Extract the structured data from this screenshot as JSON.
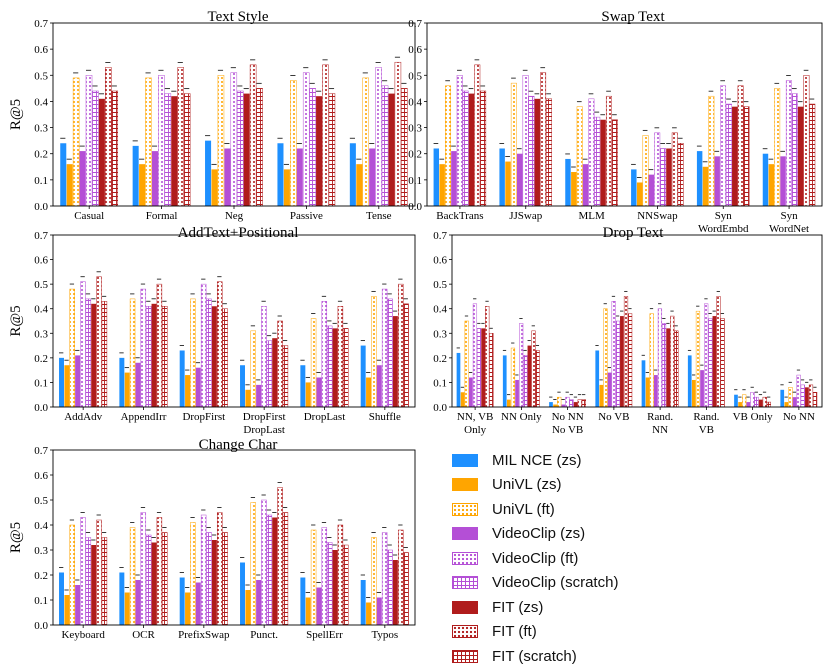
{
  "chart_data": [
    {
      "type": "bar",
      "title": "Text Style",
      "ylabel": "R@5",
      "ylim": [
        0,
        0.7
      ],
      "yticks": [
        "0.0",
        "0.1",
        "0.2",
        "0.3",
        "0.4",
        "0.5",
        "0.6",
        "0.7"
      ],
      "categories": [
        "Casual",
        "Formal",
        "Neg",
        "Passive",
        "Tense"
      ],
      "series": [
        {
          "name": "MIL NCE (zs)",
          "values": [
            0.24,
            0.23,
            0.25,
            0.24,
            0.24
          ]
        },
        {
          "name": "UniVL (zs)",
          "values": [
            0.16,
            0.16,
            0.14,
            0.14,
            0.16
          ]
        },
        {
          "name": "UniVL (ft)",
          "values": [
            0.49,
            0.49,
            0.5,
            0.48,
            0.49
          ]
        },
        {
          "name": "VideoClip (zs)",
          "values": [
            0.21,
            0.21,
            0.22,
            0.22,
            0.22
          ]
        },
        {
          "name": "VideoClip (ft)",
          "values": [
            0.5,
            0.5,
            0.51,
            0.51,
            0.53
          ]
        },
        {
          "name": "VideoClip (scratch)",
          "values": [
            0.44,
            0.43,
            0.44,
            0.45,
            0.46
          ]
        },
        {
          "name": "FIT (zs)",
          "values": [
            0.41,
            0.42,
            0.43,
            0.42,
            0.43
          ]
        },
        {
          "name": "FIT (ft)",
          "values": [
            0.53,
            0.53,
            0.54,
            0.54,
            0.55
          ]
        },
        {
          "name": "FIT (scratch)",
          "values": [
            0.44,
            0.43,
            0.45,
            0.43,
            0.45
          ]
        }
      ]
    },
    {
      "type": "bar",
      "title": "Swap Text",
      "ylabel": "",
      "ylim": [
        0,
        0.7
      ],
      "yticks": [
        "0.0",
        "0.1",
        "0.2",
        "0.3",
        "0.4",
        "0.5",
        "0.6",
        "0.7"
      ],
      "categories": [
        "BackTrans",
        "JJSwap",
        "MLM",
        "NNSwap",
        "Syn\nWordEmbd",
        "Syn\nWordNet"
      ],
      "series": [
        {
          "name": "MIL NCE (zs)",
          "values": [
            0.22,
            0.22,
            0.18,
            0.14,
            0.21,
            0.2
          ]
        },
        {
          "name": "UniVL (zs)",
          "values": [
            0.16,
            0.17,
            0.13,
            0.09,
            0.15,
            0.16
          ]
        },
        {
          "name": "UniVL (ft)",
          "values": [
            0.46,
            0.47,
            0.38,
            0.27,
            0.42,
            0.45
          ]
        },
        {
          "name": "VideoClip (zs)",
          "values": [
            0.21,
            0.2,
            0.16,
            0.12,
            0.19,
            0.19
          ]
        },
        {
          "name": "VideoClip (ft)",
          "values": [
            0.5,
            0.5,
            0.41,
            0.28,
            0.46,
            0.48
          ]
        },
        {
          "name": "VideoClip (scratch)",
          "values": [
            0.44,
            0.42,
            0.34,
            0.22,
            0.39,
            0.43
          ]
        },
        {
          "name": "FIT (zs)",
          "values": [
            0.43,
            0.41,
            0.33,
            0.22,
            0.38,
            0.38
          ]
        },
        {
          "name": "FIT (ft)",
          "values": [
            0.54,
            0.51,
            0.42,
            0.28,
            0.46,
            0.5
          ]
        },
        {
          "name": "FIT (scratch)",
          "values": [
            0.44,
            0.41,
            0.33,
            0.24,
            0.38,
            0.39
          ]
        }
      ]
    },
    {
      "type": "bar",
      "title": "AddText+Positional",
      "ylabel": "R@5",
      "ylim": [
        0,
        0.7
      ],
      "yticks": [
        "0.0",
        "0.1",
        "0.2",
        "0.3",
        "0.4",
        "0.5",
        "0.6",
        "0.7"
      ],
      "categories": [
        "AddAdv",
        "AppendIrr",
        "DropFirst",
        "DropFirst\nDropLast",
        "DropLast",
        "Shuffle"
      ],
      "series": [
        {
          "name": "MIL NCE (zs)",
          "values": [
            0.2,
            0.2,
            0.23,
            0.17,
            0.17,
            0.25
          ]
        },
        {
          "name": "UniVL (zs)",
          "values": [
            0.17,
            0.14,
            0.13,
            0.07,
            0.1,
            0.12
          ]
        },
        {
          "name": "UniVL (ft)",
          "values": [
            0.48,
            0.44,
            0.44,
            0.31,
            0.36,
            0.45
          ]
        },
        {
          "name": "VideoClip (zs)",
          "values": [
            0.21,
            0.18,
            0.16,
            0.09,
            0.12,
            0.17
          ]
        },
        {
          "name": "VideoClip (ft)",
          "values": [
            0.51,
            0.48,
            0.5,
            0.41,
            0.43,
            0.48
          ]
        },
        {
          "name": "VideoClip (scratch)",
          "values": [
            0.44,
            0.41,
            0.44,
            0.27,
            0.33,
            0.44
          ]
        },
        {
          "name": "FIT (zs)",
          "values": [
            0.42,
            0.42,
            0.41,
            0.28,
            0.32,
            0.37
          ]
        },
        {
          "name": "FIT (ft)",
          "values": [
            0.53,
            0.5,
            0.51,
            0.35,
            0.41,
            0.5
          ]
        },
        {
          "name": "FIT (scratch)",
          "values": [
            0.43,
            0.41,
            0.4,
            0.25,
            0.32,
            0.42
          ]
        }
      ]
    },
    {
      "type": "bar",
      "title": "Drop Text",
      "ylabel": "",
      "ylim": [
        0,
        0.7
      ],
      "yticks": [
        "0.0",
        "0.1",
        "0.2",
        "0.3",
        "0.4",
        "0.5",
        "0.6",
        "0.7"
      ],
      "categories": [
        "NN, VB\nOnly",
        "NN Only",
        "No NN\nNo VB",
        "No VB",
        "Rand.\nNN",
        "Rand.\nVB",
        "VB Only",
        "No NN"
      ],
      "series": [
        {
          "name": "MIL NCE (zs)",
          "values": [
            0.22,
            0.21,
            0.02,
            0.23,
            0.19,
            0.21,
            0.05,
            0.07
          ]
        },
        {
          "name": "UniVL (zs)",
          "values": [
            0.06,
            0.03,
            0.01,
            0.09,
            0.12,
            0.11,
            0.02,
            0.02
          ]
        },
        {
          "name": "UniVL (ft)",
          "values": [
            0.35,
            0.24,
            0.04,
            0.4,
            0.38,
            0.39,
            0.05,
            0.08
          ]
        },
        {
          "name": "VideoClip (zs)",
          "values": [
            0.12,
            0.11,
            0.01,
            0.14,
            0.13,
            0.15,
            0.02,
            0.04
          ]
        },
        {
          "name": "VideoClip (ft)",
          "values": [
            0.42,
            0.34,
            0.04,
            0.43,
            0.4,
            0.42,
            0.06,
            0.13
          ]
        },
        {
          "name": "VideoClip (scratch)",
          "values": [
            0.32,
            0.21,
            0.03,
            0.35,
            0.34,
            0.36,
            0.04,
            0.09
          ]
        },
        {
          "name": "FIT (zs)",
          "values": [
            0.32,
            0.25,
            0.02,
            0.37,
            0.32,
            0.37,
            0.03,
            0.08
          ]
        },
        {
          "name": "FIT (ft)",
          "values": [
            0.41,
            0.31,
            0.03,
            0.45,
            0.37,
            0.45,
            0.04,
            0.09
          ]
        },
        {
          "name": "FIT (scratch)",
          "values": [
            0.3,
            0.23,
            0.03,
            0.38,
            0.31,
            0.36,
            0.02,
            0.06
          ]
        }
      ]
    },
    {
      "type": "bar",
      "title": "Change Char",
      "ylabel": "R@5",
      "ylim": [
        0,
        0.7
      ],
      "yticks": [
        "0.0",
        "0.1",
        "0.2",
        "0.3",
        "0.4",
        "0.5",
        "0.6",
        "0.7"
      ],
      "categories": [
        "Keyboard",
        "OCR",
        "PrefixSwap",
        "Punct.",
        "SpellErr",
        "Typos"
      ],
      "series": [
        {
          "name": "MIL NCE (zs)",
          "values": [
            0.21,
            0.21,
            0.19,
            0.25,
            0.19,
            0.18
          ]
        },
        {
          "name": "UniVL (zs)",
          "values": [
            0.12,
            0.13,
            0.13,
            0.14,
            0.11,
            0.09
          ]
        },
        {
          "name": "UniVL (ft)",
          "values": [
            0.4,
            0.39,
            0.41,
            0.49,
            0.38,
            0.35
          ]
        },
        {
          "name": "VideoClip (zs)",
          "values": [
            0.16,
            0.18,
            0.17,
            0.18,
            0.15,
            0.11
          ]
        },
        {
          "name": "VideoClip (ft)",
          "values": [
            0.43,
            0.45,
            0.44,
            0.5,
            0.39,
            0.37
          ]
        },
        {
          "name": "VideoClip (scratch)",
          "values": [
            0.35,
            0.36,
            0.37,
            0.44,
            0.33,
            0.3
          ]
        },
        {
          "name": "FIT (zs)",
          "values": [
            0.32,
            0.33,
            0.34,
            0.43,
            0.3,
            0.26
          ]
        },
        {
          "name": "FIT (ft)",
          "values": [
            0.42,
            0.43,
            0.45,
            0.55,
            0.4,
            0.38
          ]
        },
        {
          "name": "FIT (scratch)",
          "values": [
            0.35,
            0.37,
            0.37,
            0.45,
            0.32,
            0.29
          ]
        }
      ]
    }
  ],
  "legend": [
    {
      "label": "MIL NCE (zs)",
      "color": "#1e90ff",
      "pattern": "solid"
    },
    {
      "label": "UniVL (zs)",
      "color": "#ffa500",
      "pattern": "solid"
    },
    {
      "label": "UniVL (ft)",
      "color": "#ffa500",
      "pattern": "dots"
    },
    {
      "label": "VideoClip (zs)",
      "color": "#b44fd6",
      "pattern": "solid"
    },
    {
      "label": "VideoClip (ft)",
      "color": "#b44fd6",
      "pattern": "dots"
    },
    {
      "label": "VideoClip (scratch)",
      "color": "#b44fd6",
      "pattern": "grid"
    },
    {
      "label": "FIT (zs)",
      "color": "#b01c1c",
      "pattern": "solid"
    },
    {
      "label": "FIT (ft)",
      "color": "#b01c1c",
      "pattern": "dots"
    },
    {
      "label": "FIT (scratch)",
      "color": "#b01c1c",
      "pattern": "grid"
    }
  ]
}
